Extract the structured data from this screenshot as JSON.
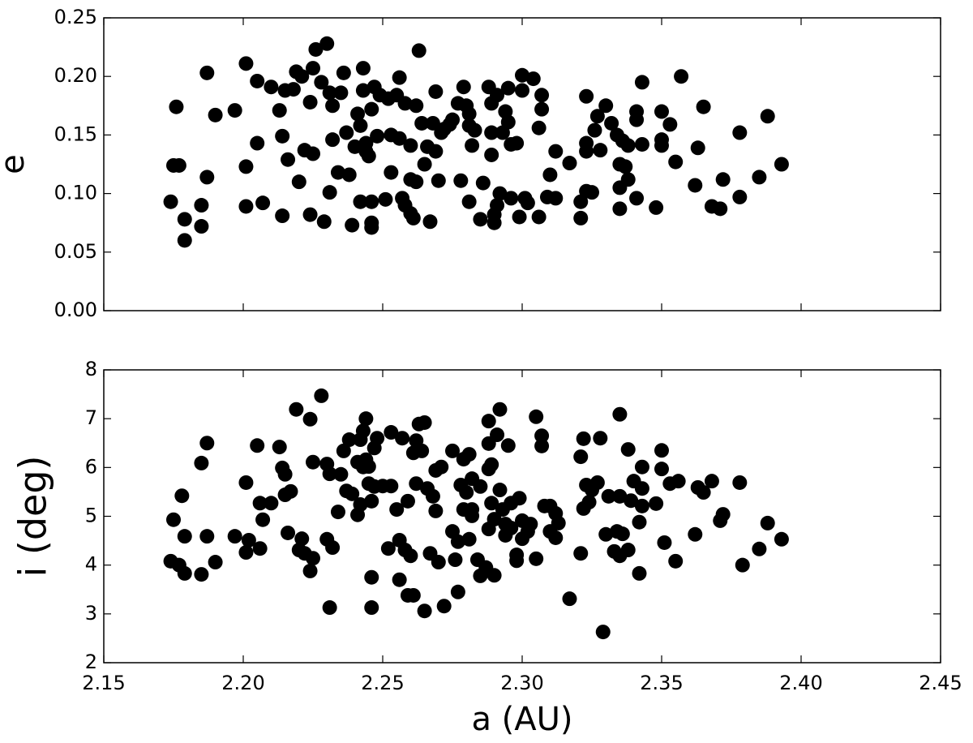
{
  "chart_data": [
    {
      "type": "scatter",
      "ylabel": "e",
      "color": "#000000",
      "xlim": [
        2.15,
        2.45
      ],
      "xticks": [
        2.15,
        2.2,
        2.25,
        2.3,
        2.35,
        2.4,
        2.45
      ],
      "ylim": [
        0,
        0.25
      ],
      "yticks": [
        {
          "value": 0,
          "label": "0.00"
        },
        0.05,
        {
          "value": 0.1,
          "label": "0.10"
        },
        0.15,
        {
          "value": 0.2,
          "label": "0.20"
        },
        0.25
      ],
      "x": [
        2.174,
        2.175,
        2.177,
        2.176,
        2.179,
        2.179,
        2.185,
        2.185,
        2.187,
        2.187,
        2.19,
        2.197,
        2.201,
        2.201,
        2.201,
        2.205,
        2.205,
        2.207,
        2.21,
        2.214,
        2.213,
        2.214,
        2.215,
        2.216,
        2.218,
        2.219,
        2.22,
        2.221,
        2.222,
        2.224,
        2.224,
        2.225,
        2.225,
        2.226,
        2.228,
        2.229,
        2.23,
        2.231,
        2.231,
        2.232,
        2.232,
        2.234,
        2.235,
        2.236,
        2.237,
        2.238,
        2.239,
        2.24,
        2.241,
        2.242,
        2.242,
        2.243,
        2.243,
        2.244,
        2.244,
        2.245,
        2.246,
        2.246,
        2.246,
        2.246,
        2.247,
        2.248,
        2.249,
        2.251,
        2.252,
        2.253,
        2.253,
        2.255,
        2.256,
        2.256,
        2.257,
        2.258,
        2.258,
        2.26,
        2.26,
        2.26,
        2.261,
        2.262,
        2.262,
        2.263,
        2.264,
        2.265,
        2.266,
        2.267,
        2.268,
        2.269,
        2.269,
        2.27,
        2.271,
        2.272,
        2.274,
        2.275,
        2.277,
        2.278,
        2.279,
        2.28,
        2.281,
        2.281,
        2.281,
        2.282,
        2.283,
        2.285,
        2.286,
        2.288,
        2.289,
        2.289,
        2.289,
        2.29,
        2.29,
        2.291,
        2.291,
        2.292,
        2.293,
        2.294,
        2.295,
        2.295,
        2.296,
        2.296,
        2.298,
        2.299,
        2.3,
        2.3,
        2.301,
        2.302,
        2.304,
        2.306,
        2.306,
        2.307,
        2.307,
        2.309,
        2.31,
        2.312,
        2.312,
        2.317,
        2.321,
        2.321,
        2.323,
        2.323,
        2.323,
        2.323,
        2.325,
        2.326,
        2.327,
        2.328,
        2.33,
        2.332,
        2.334,
        2.335,
        2.335,
        2.335,
        2.336,
        2.337,
        2.338,
        2.338,
        2.341,
        2.341,
        2.341,
        2.343,
        2.343,
        2.348,
        2.35,
        2.35,
        2.35,
        2.353,
        2.355,
        2.357,
        2.362,
        2.363,
        2.365,
        2.368,
        2.371,
        2.372,
        2.378,
        2.378,
        2.385,
        2.388,
        2.393
      ],
      "y": [
        0.093,
        0.124,
        0.124,
        0.174,
        0.078,
        0.06,
        0.09,
        0.072,
        0.114,
        0.203,
        0.167,
        0.171,
        0.211,
        0.089,
        0.123,
        0.196,
        0.143,
        0.092,
        0.191,
        0.081,
        0.171,
        0.149,
        0.188,
        0.129,
        0.189,
        0.204,
        0.11,
        0.2,
        0.137,
        0.178,
        0.082,
        0.207,
        0.134,
        0.223,
        0.195,
        0.076,
        0.228,
        0.101,
        0.186,
        0.175,
        0.146,
        0.118,
        0.186,
        0.203,
        0.152,
        0.116,
        0.073,
        0.14,
        0.168,
        0.093,
        0.158,
        0.188,
        0.207,
        0.136,
        0.143,
        0.132,
        0.071,
        0.075,
        0.093,
        0.172,
        0.191,
        0.149,
        0.184,
        0.095,
        0.181,
        0.118,
        0.15,
        0.184,
        0.147,
        0.199,
        0.096,
        0.177,
        0.09,
        0.083,
        0.141,
        0.112,
        0.079,
        0.175,
        0.11,
        0.222,
        0.16,
        0.125,
        0.14,
        0.076,
        0.16,
        0.136,
        0.187,
        0.111,
        0.152,
        0.155,
        0.159,
        0.163,
        0.177,
        0.111,
        0.191,
        0.175,
        0.168,
        0.093,
        0.158,
        0.141,
        0.154,
        0.078,
        0.109,
        0.191,
        0.152,
        0.133,
        0.177,
        0.082,
        0.075,
        0.184,
        0.09,
        0.1,
        0.152,
        0.17,
        0.161,
        0.19,
        0.142,
        0.096,
        0.143,
        0.08,
        0.188,
        0.201,
        0.096,
        0.092,
        0.198,
        0.156,
        0.08,
        0.184,
        0.172,
        0.097,
        0.116,
        0.096,
        0.136,
        0.126,
        0.079,
        0.093,
        0.143,
        0.136,
        0.102,
        0.183,
        0.101,
        0.154,
        0.166,
        0.137,
        0.175,
        0.16,
        0.15,
        0.087,
        0.105,
        0.125,
        0.145,
        0.123,
        0.112,
        0.141,
        0.17,
        0.163,
        0.096,
        0.195,
        0.142,
        0.088,
        0.17,
        0.146,
        0.141,
        0.159,
        0.127,
        0.2,
        0.107,
        0.139,
        0.174,
        0.089,
        0.087,
        0.112,
        0.152,
        0.097,
        0.114,
        0.166,
        0.125
      ]
    },
    {
      "type": "scatter",
      "xlabel": "a (AU)",
      "ylabel": "i (deg)",
      "color": "#000000",
      "xlim": [
        2.15,
        2.45
      ],
      "xticks": [
        2.15,
        {
          "value": 2.2,
          "label": "2.20"
        },
        2.25,
        {
          "value": 2.3,
          "label": "2.30"
        },
        2.35,
        {
          "value": 2.4,
          "label": "2.40"
        },
        2.45
      ],
      "ylim": [
        2,
        8
      ],
      "yticks": [
        2,
        3,
        4,
        5,
        6,
        7,
        8
      ],
      "x": [
        2.174,
        2.175,
        2.177,
        2.178,
        2.179,
        2.179,
        2.185,
        2.185,
        2.187,
        2.187,
        2.19,
        2.197,
        2.201,
        2.201,
        2.202,
        2.205,
        2.206,
        2.206,
        2.207,
        2.21,
        2.213,
        2.214,
        2.215,
        2.215,
        2.216,
        2.217,
        2.219,
        2.22,
        2.221,
        2.222,
        2.224,
        2.224,
        2.225,
        2.225,
        2.228,
        2.23,
        2.23,
        2.231,
        2.231,
        2.232,
        2.234,
        2.235,
        2.236,
        2.237,
        2.238,
        2.239,
        2.241,
        2.241,
        2.242,
        2.242,
        2.243,
        2.243,
        2.244,
        2.244,
        2.245,
        2.245,
        2.246,
        2.246,
        2.246,
        2.247,
        2.247,
        2.248,
        2.25,
        2.252,
        2.253,
        2.253,
        2.255,
        2.256,
        2.256,
        2.257,
        2.258,
        2.259,
        2.259,
        2.26,
        2.261,
        2.261,
        2.262,
        2.262,
        2.263,
        2.264,
        2.265,
        2.265,
        2.267,
        2.266,
        2.268,
        2.269,
        2.269,
        2.27,
        2.271,
        2.272,
        2.275,
        2.275,
        2.276,
        2.277,
        2.277,
        2.278,
        2.279,
        2.279,
        2.28,
        2.281,
        2.281,
        2.282,
        2.282,
        2.282,
        2.284,
        2.285,
        2.285,
        2.287,
        2.288,
        2.288,
        2.288,
        2.289,
        2.289,
        2.288,
        2.29,
        2.29,
        2.291,
        2.292,
        2.292,
        2.293,
        2.294,
        2.294,
        2.295,
        2.296,
        2.296,
        2.298,
        2.298,
        2.299,
        2.3,
        2.3,
        2.302,
        2.303,
        2.305,
        2.305,
        2.307,
        2.307,
        2.308,
        2.31,
        2.31,
        2.312,
        2.312,
        2.313,
        2.317,
        2.321,
        2.321,
        2.322,
        2.322,
        2.323,
        2.324,
        2.325,
        2.327,
        2.328,
        2.329,
        2.33,
        2.331,
        2.333,
        2.334,
        2.335,
        2.335,
        2.335,
        2.336,
        2.338,
        2.338,
        2.339,
        2.34,
        2.342,
        2.342,
        2.343,
        2.343,
        2.343,
        2.348,
        2.35,
        2.35,
        2.351,
        2.353,
        2.355,
        2.356,
        2.362,
        2.363,
        2.365,
        2.368,
        2.371,
        2.372,
        2.378,
        2.379,
        2.385,
        2.388,
        2.393
      ],
      "y": [
        4.08,
        4.93,
        4.0,
        5.42,
        4.59,
        3.83,
        3.81,
        6.09,
        6.5,
        4.59,
        4.06,
        4.59,
        5.69,
        4.26,
        4.51,
        6.45,
        5.27,
        4.34,
        4.93,
        5.27,
        6.42,
        5.99,
        5.86,
        5.44,
        4.66,
        5.51,
        7.19,
        4.31,
        4.54,
        4.24,
        6.99,
        3.88,
        4.14,
        6.11,
        7.47,
        4.53,
        6.07,
        3.13,
        5.87,
        4.36,
        5.09,
        5.86,
        6.34,
        5.52,
        6.57,
        5.46,
        6.11,
        5.03,
        6.57,
        5.24,
        6.75,
        6.01,
        7.0,
        6.16,
        5.67,
        6.02,
        3.75,
        3.13,
        5.31,
        6.4,
        5.61,
        6.6,
        5.62,
        4.34,
        5.62,
        6.72,
        5.14,
        3.7,
        4.51,
        6.6,
        4.31,
        5.31,
        3.38,
        4.19,
        6.3,
        3.38,
        5.67,
        6.55,
        6.89,
        6.34,
        3.06,
        6.92,
        4.24,
        5.57,
        5.41,
        5.11,
        5.94,
        4.06,
        6.01,
        3.16,
        6.34,
        4.69,
        4.11,
        3.45,
        4.48,
        5.64,
        6.17,
        5.14,
        5.49,
        6.27,
        4.53,
        5.77,
        5.14,
        5.01,
        4.11,
        5.61,
        3.78,
        3.95,
        5.97,
        6.49,
        6.95,
        6.06,
        5.27,
        4.74,
        4.94,
        3.79,
        6.67,
        7.19,
        5.54,
        5.14,
        4.61,
        4.84,
        6.45,
        5.27,
        4.76,
        4.09,
        4.21,
        5.37,
        4.91,
        4.54,
        4.69,
        4.84,
        7.04,
        4.13,
        6.44,
        6.65,
        5.21,
        5.21,
        4.69,
        4.56,
        5.06,
        4.86,
        3.31,
        6.22,
        4.24,
        6.59,
        5.16,
        5.64,
        5.29,
        5.54,
        5.69,
        6.6,
        2.63,
        4.63,
        5.41,
        4.28,
        4.69,
        7.09,
        4.19,
        5.41,
        4.64,
        6.37,
        4.31,
        5.32,
        5.72,
        3.83,
        4.88,
        5.21,
        6.01,
        5.57,
        5.26,
        6.35,
        5.97,
        4.46,
        5.67,
        4.08,
        5.72,
        4.63,
        5.59,
        5.49,
        5.72,
        4.91,
        5.04,
        5.69,
        4.0,
        4.33,
        4.86,
        4.53
      ]
    }
  ]
}
